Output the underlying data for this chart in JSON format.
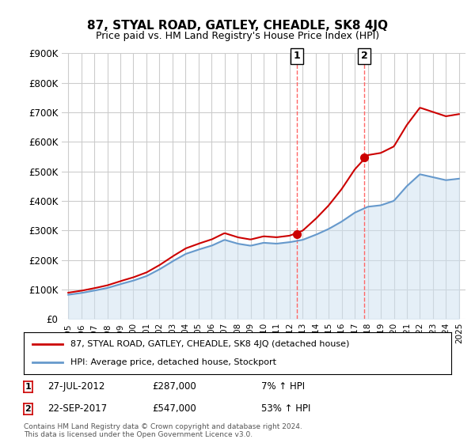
{
  "title": "87, STYAL ROAD, GATLEY, CHEADLE, SK8 4JQ",
  "subtitle": "Price paid vs. HM Land Registry's House Price Index (HPI)",
  "legend_line1": "87, STYAL ROAD, GATLEY, CHEADLE, SK8 4JQ (detached house)",
  "legend_line2": "HPI: Average price, detached house, Stockport",
  "annotation1_label": "1",
  "annotation1_date": "27-JUL-2012",
  "annotation1_price": "£287,000",
  "annotation1_hpi": "7% ↑ HPI",
  "annotation2_label": "2",
  "annotation2_date": "22-SEP-2017",
  "annotation2_price": "£547,000",
  "annotation2_hpi": "53% ↑ HPI",
  "footer": "Contains HM Land Registry data © Crown copyright and database right 2024.\nThis data is licensed under the Open Government Licence v3.0.",
  "property_color": "#cc0000",
  "hpi_color": "#6699cc",
  "hpi_fill_color": "#cce0f0",
  "background_color": "#ffffff",
  "grid_color": "#cccccc",
  "dashed_line_color": "#ff6666",
  "ylim": [
    0,
    900000
  ],
  "yticks": [
    0,
    100000,
    200000,
    300000,
    400000,
    500000,
    600000,
    700000,
    800000,
    900000
  ],
  "ytick_labels": [
    "£0",
    "£100K",
    "£200K",
    "£300K",
    "£400K",
    "£500K",
    "£600K",
    "£700K",
    "£800K",
    "£900K"
  ],
  "sale1_year": 2012.57,
  "sale1_price": 287000,
  "sale2_year": 2017.73,
  "sale2_price": 547000
}
